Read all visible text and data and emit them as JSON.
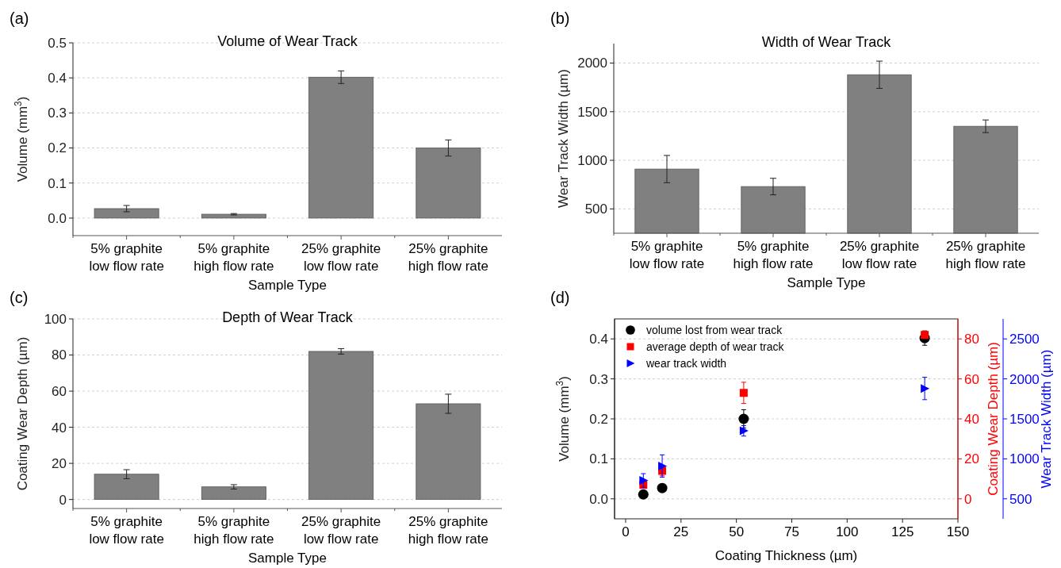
{
  "chart_data": [
    {
      "type": "bar",
      "title": "Volume of Wear Track",
      "xlabel": "Sample Type",
      "ylabel": "Volume (mm$^{3}$)",
      "annotations": [
        "(a)"
      ],
      "categories": [
        "5% graphite\nlow flow rate",
        "5% graphite\nhigh flow rate",
        "25% graphite\nlow flow rate",
        "25% graphite\nhigh flow rate"
      ],
      "values": [
        0.027,
        0.011,
        0.402,
        0.2
      ],
      "errors": [
        0.009,
        0.002,
        0.018,
        0.023
      ],
      "color": "#808080",
      "ylim": [
        -0.05,
        0.5
      ],
      "yticks": [
        {
          "value": 0,
          "label": "0.0"
        },
        0.1,
        0.2,
        0.3,
        0.4,
        0.5
      ],
      "grid": "y"
    },
    {
      "type": "bar",
      "title": "Width of Wear Track",
      "xlabel": "Sample Type",
      "ylabel": "Wear Track Width (µm)",
      "annotations": [
        "(b)"
      ],
      "categories": [
        "5% graphite\nlow flow rate",
        "5% graphite\nhigh flow rate",
        "25% graphite\nlow flow rate",
        "25% graphite\nhigh flow rate"
      ],
      "values": [
        910,
        730,
        1880,
        1350
      ],
      "errors": [
        140,
        85,
        140,
        65
      ],
      "color": "#808080",
      "ylim": [
        250,
        2200
      ],
      "yticks": [
        500,
        1000,
        1500,
        2000
      ],
      "grid": "y"
    },
    {
      "type": "bar",
      "title": "Depth of Wear Track",
      "xlabel": "Sample Type",
      "ylabel": "Coating Wear Depth (µm)",
      "annotations": [
        "(c)"
      ],
      "categories": [
        "5% graphite\nlow flow rate",
        "5% graphite\nhigh flow rate",
        "25% graphite\nlow flow rate",
        "25% graphite\nhigh flow rate"
      ],
      "values": [
        14,
        7,
        82,
        53
      ],
      "errors": [
        2.5,
        1.2,
        1.5,
        5.3
      ],
      "color": "#808080",
      "ylim": [
        -5,
        100
      ],
      "yticks": [
        0,
        20,
        40,
        60,
        80,
        100
      ],
      "grid": "y"
    },
    {
      "type": "scatter",
      "xlabel": "Coating Thickness (µm)",
      "ylabel": "Volume (mm$^{3}$)",
      "y2label": "Coating Wear Depth (µm)",
      "y3label": "Wear Track Width (µm)",
      "annotations": [
        "(d)"
      ],
      "x": [
        8,
        16.5,
        53.3,
        135
      ],
      "series": [
        {
          "name": "volume lost from wear track",
          "color": "#000000",
          "marker": "circle",
          "values": [
            0.011,
            0.027,
            0.2,
            0.402
          ],
          "errors": [
            0.002,
            0.009,
            0.023,
            0.018
          ]
        },
        {
          "name": "average depth of wear track",
          "color": "#ff0000",
          "marker": "square",
          "axis": "y2",
          "values": [
            7,
            14,
            53,
            82
          ],
          "errors": [
            1.2,
            2.5,
            5.3,
            1.5
          ]
        },
        {
          "name": "wear track width",
          "color": "#0000ff",
          "marker": "triangle",
          "axis": "y3",
          "values": [
            730,
            910,
            1350,
            1880
          ],
          "errors": [
            85,
            140,
            65,
            140
          ]
        }
      ],
      "xlim": [
        -5,
        150
      ],
      "xticks": [
        0,
        25,
        50,
        75,
        100,
        125,
        150
      ],
      "ylim": [
        -0.05,
        0.45
      ],
      "yticks": [
        {
          "value": 0,
          "label": "0.0"
        },
        0.1,
        0.2,
        0.3,
        0.4
      ],
      "y2lim": [
        -10,
        90
      ],
      "y2ticks": [
        0,
        20,
        40,
        60,
        80
      ],
      "y3lim": [
        250,
        2750
      ],
      "y3ticks": [
        500,
        1000,
        1500,
        2000,
        2500
      ],
      "grid": "y",
      "legend": "top left"
    }
  ]
}
